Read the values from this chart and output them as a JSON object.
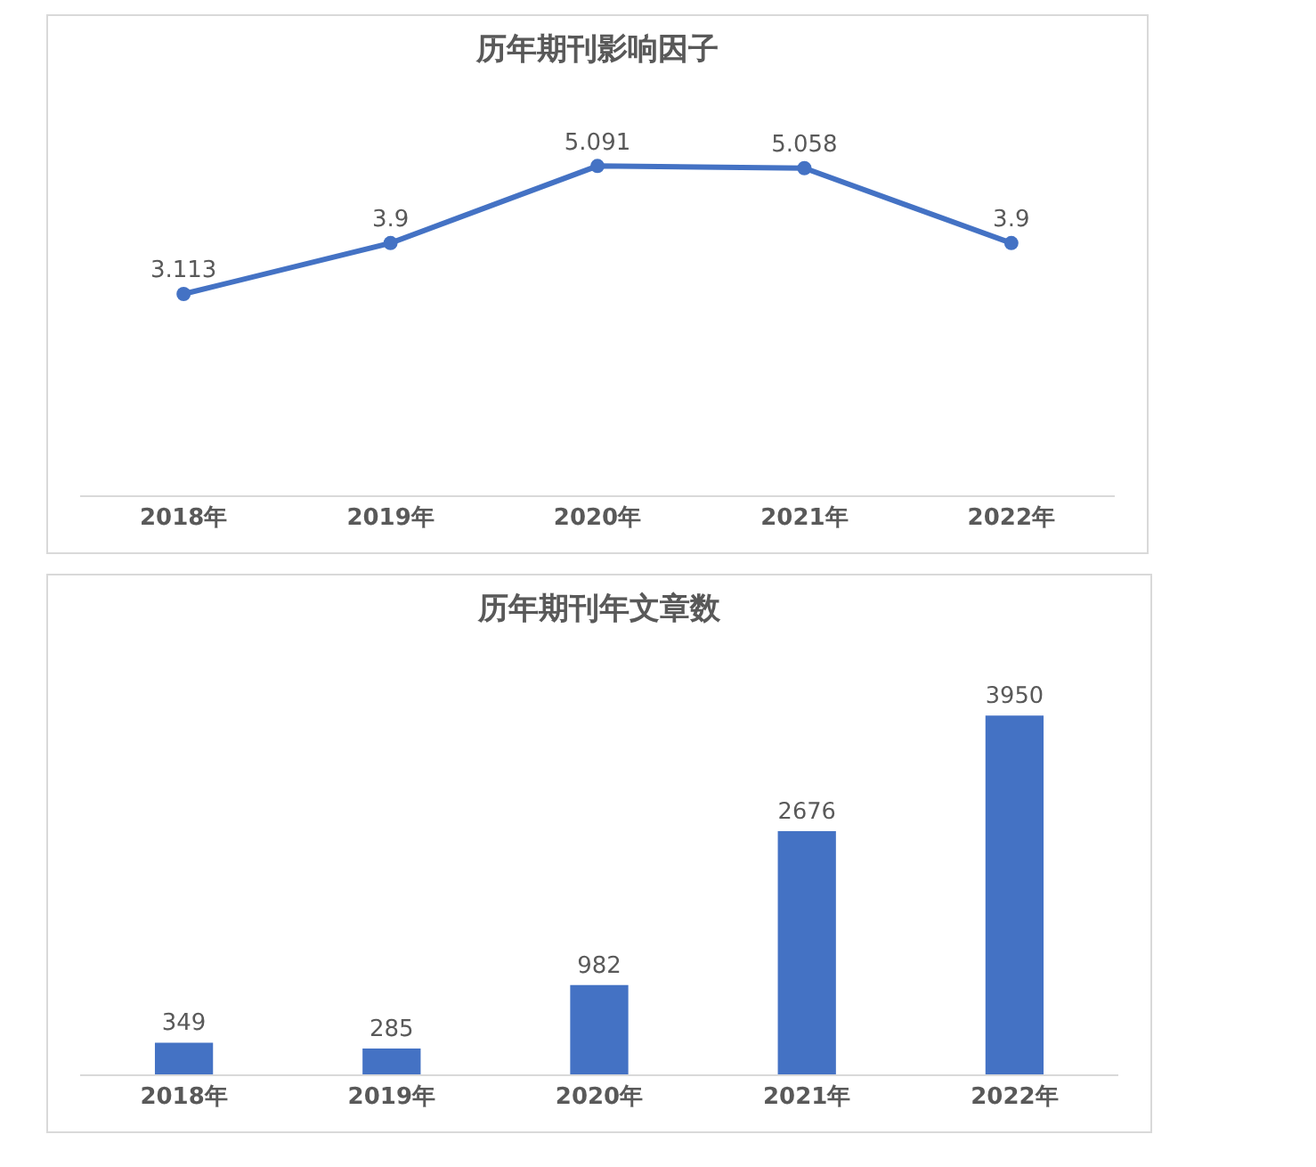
{
  "chart_data": [
    {
      "type": "line",
      "title": "历年期刊影响因子",
      "categories": [
        "2018年",
        "2019年",
        "2020年",
        "2021年",
        "2022年"
      ],
      "series": [
        {
          "color": "#4472c4",
          "values": [
            3.113,
            3.9,
            5.091,
            5.058,
            3.9
          ]
        }
      ],
      "data_labels": true,
      "marker": "circle",
      "grid": false,
      "tick_labels": "x"
    },
    {
      "type": "bar",
      "title": "历年期刊年文章数",
      "categories": [
        "2018年",
        "2019年",
        "2020年",
        "2021年",
        "2022年"
      ],
      "series": [
        {
          "color": "#4472c4",
          "values": [
            349,
            285,
            982,
            2676,
            3950
          ]
        }
      ],
      "data_labels": true,
      "grid": false,
      "tick_labels": "x"
    }
  ]
}
